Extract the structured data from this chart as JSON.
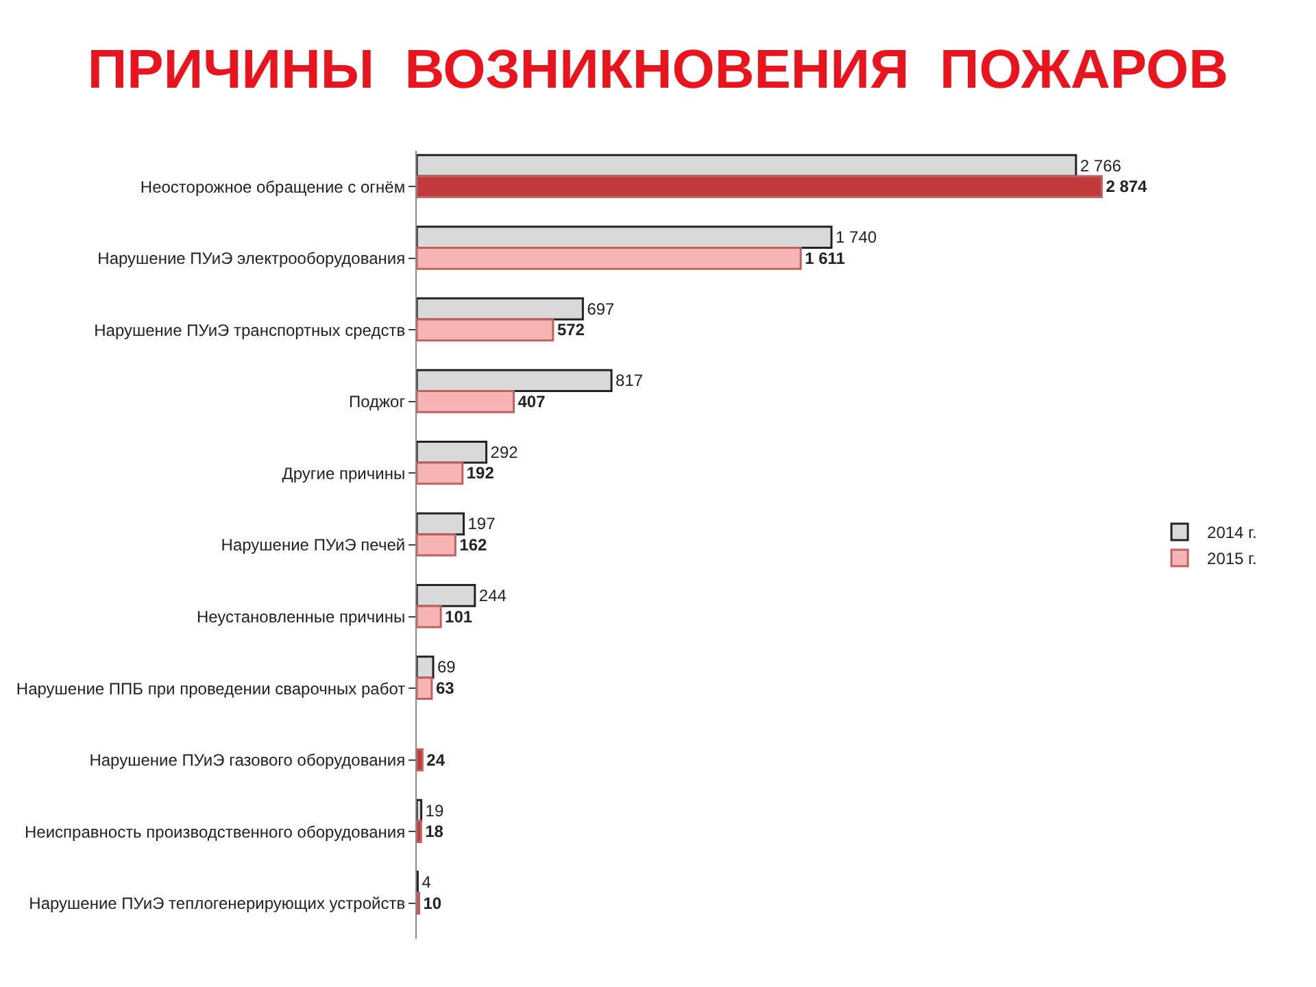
{
  "chart_data": {
    "type": "bar",
    "orientation": "horizontal",
    "title": "ПРИЧИНЫ  ВОЗНИКНОВЕНИЯ  ПОЖАРОВ",
    "categories": [
      "Неосторожное обращение с огнём",
      "Нарушение ПУиЭ электрооборудования",
      "Нарушение ПУиЭ транспортных средств",
      "Поджог",
      "Другие причины",
      "Нарушение ПУиЭ печей",
      "Неустановленные причины",
      "Нарушение ППБ при проведении сварочных работ",
      "Нарушение ПУиЭ газового оборудования",
      "Неисправность производственного оборудования",
      "Нарушение ПУиЭ теплогенерирующих устройств"
    ],
    "series": [
      {
        "name": "2014 г.",
        "color": "#d9d9d9",
        "values": [
          2766,
          1740,
          697,
          817,
          292,
          197,
          244,
          69,
          null,
          19,
          4
        ],
        "value_labels": [
          "2 766",
          "1 740",
          "697",
          "817",
          "292",
          "197",
          "244",
          "69",
          null,
          "19",
          "4"
        ]
      },
      {
        "name": "2015 г.",
        "color": "#f7b4b4",
        "colors": [
          "#c0393b",
          "#f7b4b4",
          "#f7b4b4",
          "#f7b4b4",
          "#f7b4b4",
          "#f7b4b4",
          "#f7b4b4",
          "#f7b4b4",
          "#c0393b",
          "#c0393b",
          "#c0393b"
        ],
        "values": [
          2874,
          1611,
          572,
          407,
          192,
          162,
          101,
          63,
          24,
          18,
          10
        ],
        "value_labels": [
          "2 874",
          "1 611",
          "572",
          "407",
          "192",
          "162",
          "101",
          "63",
          "24",
          "18",
          "10"
        ]
      }
    ],
    "legend": "right"
  }
}
